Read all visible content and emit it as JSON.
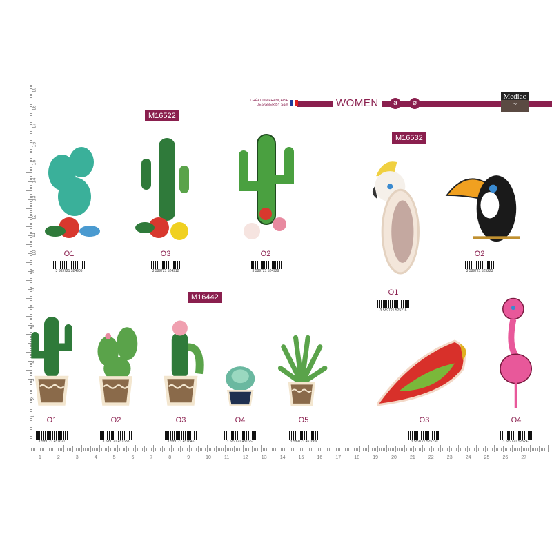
{
  "header": {
    "credit_line1": "CRÉATION FRANÇAISE",
    "credit_line2": "DESIGNER BY S&M",
    "section": "WOMEN",
    "care_icons": [
      "iron-icon",
      "dry-clean-icon"
    ],
    "brand_logo": "Mediac",
    "brand_color": "#8a1f4e"
  },
  "collections": [
    {
      "ref": "M16522",
      "items": [
        {
          "label": "O1",
          "barcode": "3 589721 524905",
          "type": "prickly-pear-cactus"
        },
        {
          "label": "O3",
          "barcode": "3 589721 524912",
          "type": "cactus-bouquet"
        },
        {
          "label": "O2",
          "barcode": "3 589721 524929",
          "type": "saguaro-cactus"
        }
      ]
    },
    {
      "ref": "M16532",
      "items": [
        {
          "label": "O1",
          "barcode": "3 589721 525216",
          "type": "cockatoo"
        },
        {
          "label": "O2",
          "barcode": "3 589721 525223",
          "type": "toucan"
        },
        {
          "label": "O3",
          "barcode": "3 589721 525230",
          "type": "parrot"
        },
        {
          "label": "O4",
          "barcode": "3 589721 525247",
          "type": "flamingo"
        }
      ]
    },
    {
      "ref": "M16442",
      "items": [
        {
          "label": "O1",
          "barcode": "3 589721 451621",
          "type": "potted-cactus"
        },
        {
          "label": "O2",
          "barcode": "3 589721 451638",
          "type": "potted-prickly-pear"
        },
        {
          "label": "O3",
          "barcode": "3 589721 451645",
          "type": "potted-flowering-cactus"
        },
        {
          "label": "O4",
          "barcode": "3 589721 451652",
          "type": "potted-succulent"
        },
        {
          "label": "O5",
          "barcode": "3 589721 451669",
          "type": "potted-aloe"
        }
      ]
    }
  ],
  "ruler": {
    "horizontal": [
      "1",
      "2",
      "3",
      "4",
      "5",
      "6",
      "7",
      "8",
      "9",
      "10",
      "11",
      "12",
      "13",
      "14",
      "15",
      "16",
      "17",
      "18",
      "19",
      "20",
      "21",
      "22",
      "23",
      "24",
      "25",
      "26",
      "27"
    ],
    "vertical": [
      "1",
      "2",
      "3",
      "4",
      "5",
      "6",
      "7",
      "8",
      "9",
      "10",
      "11",
      "12",
      "13",
      "14",
      "15",
      "16",
      "17",
      "18",
      "19"
    ]
  }
}
